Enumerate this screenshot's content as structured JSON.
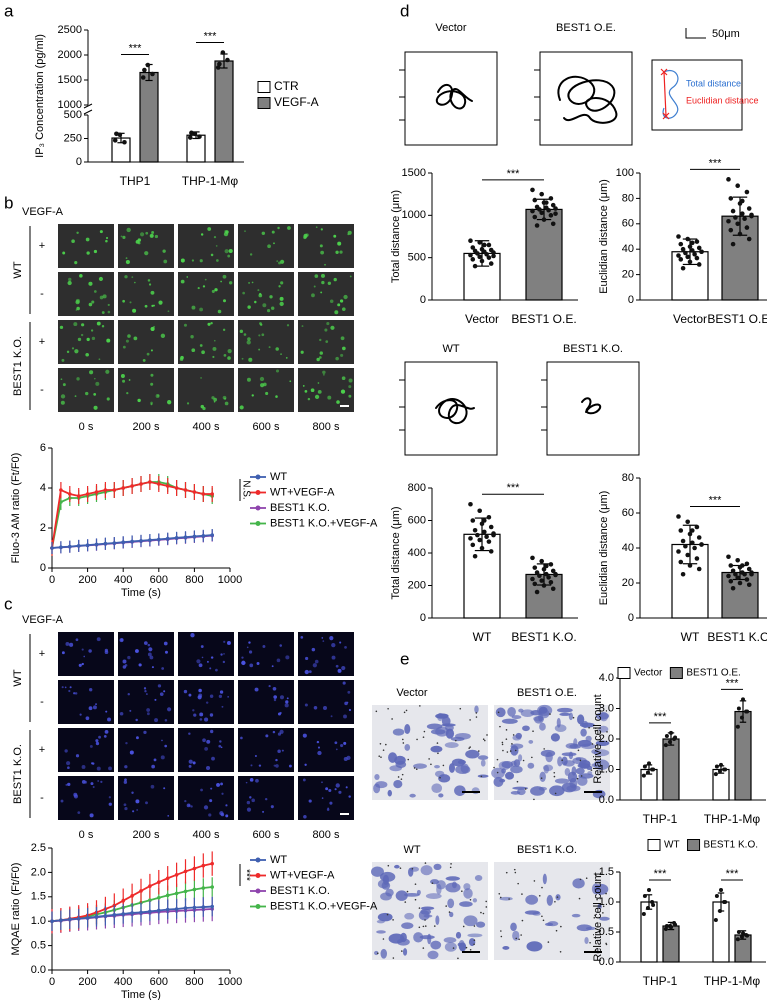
{
  "panel_labels": [
    "a",
    "b",
    "c",
    "d",
    "e"
  ],
  "calcium_imaging": {
    "stimulus": "VEGF-A",
    "groups": [
      "WT",
      "BEST1 K.O."
    ],
    "rows": [
      "+",
      "-",
      "+",
      "-"
    ],
    "times": [
      "0 s",
      "200 s",
      "400 s",
      "600 s",
      "800 s"
    ]
  },
  "mqae_imaging": {
    "stimulus": "VEGF-A",
    "groups": [
      "WT",
      "BEST1 K.O."
    ],
    "rows": [
      "+",
      "-",
      "+",
      "-"
    ],
    "times": [
      "0 s",
      "200 s",
      "400 s",
      "600 s",
      "800 s"
    ]
  },
  "trajectories": {
    "overexpression": [
      "Vector",
      "BEST1 O.E."
    ],
    "knockout": [
      "WT",
      "BEST1 K.O."
    ],
    "scale_bar": "50μm",
    "inset": [
      "Total distance",
      "Euclidian distance"
    ]
  },
  "transwell": {
    "overexpression": [
      "Vector",
      "BEST1 O.E."
    ],
    "knockout": [
      "WT",
      "BEST1 K.O."
    ]
  },
  "chart_data": [
    {
      "type": "bar",
      "ylabel": "IP₃ Concentration (pg/ml)",
      "categories": [
        "THP1",
        "THP-1-Mφ"
      ],
      "series": [
        {
          "name": "CTR",
          "color": "#ffffff",
          "values": [
            255,
            285
          ],
          "errors": [
            50,
            35
          ],
          "points": [
            [
              230,
              290,
              210,
              300
            ],
            [
              260,
              300,
              270,
              310
            ]
          ]
        },
        {
          "name": "VEGF-A",
          "color": "#808080",
          "values": [
            1650,
            1880
          ],
          "errors": [
            160,
            140
          ],
          "points": [
            [
              1550,
              1800,
              1620,
              1700
            ],
            [
              1750,
              2050,
              1900,
              1820
            ]
          ]
        }
      ],
      "ylim": [
        0,
        2500
      ],
      "yticks": [
        0,
        250,
        500,
        1000,
        1500,
        2000,
        2500
      ],
      "axis_break": [
        500,
        1000
      ],
      "annotations": [
        "***",
        "***"
      ],
      "legend": "right"
    },
    {
      "type": "line",
      "xlabel": "Time (s)",
      "ylabel": "Fluo-3 AM ratio (Ft/F0)",
      "x": [
        0,
        50,
        100,
        150,
        200,
        250,
        300,
        350,
        400,
        450,
        500,
        550,
        600,
        650,
        700,
        750,
        800,
        850,
        900
      ],
      "series": [
        {
          "name": "WT",
          "color": "#3f5fb0",
          "values": [
            1.0,
            1.04,
            1.07,
            1.11,
            1.14,
            1.18,
            1.22,
            1.25,
            1.29,
            1.33,
            1.36,
            1.4,
            1.43,
            1.47,
            1.51,
            1.54,
            1.58,
            1.61,
            1.65
          ],
          "errors": [
            0.3,
            0.3,
            0.3,
            0.3,
            0.3,
            0.3,
            0.3,
            0.3,
            0.3,
            0.3,
            0.3,
            0.3,
            0.3,
            0.3,
            0.3,
            0.3,
            0.3,
            0.3,
            0.3
          ]
        },
        {
          "name": "WT+VEGF-A",
          "color": "#ee2a2a",
          "values": [
            1.0,
            3.9,
            3.7,
            3.6,
            3.7,
            3.8,
            3.9,
            3.9,
            4.0,
            4.1,
            4.2,
            4.3,
            4.2,
            4.1,
            4.0,
            3.9,
            3.8,
            3.7,
            3.7
          ],
          "errors": [
            0.4,
            0.4,
            0.4,
            0.4,
            0.4,
            0.4,
            0.4,
            0.4,
            0.4,
            0.4,
            0.4,
            0.4,
            0.4,
            0.4,
            0.4,
            0.4,
            0.4,
            0.4,
            0.4
          ]
        },
        {
          "name": "BEST1 K.O.",
          "color": "#8e44ad",
          "values": [
            1.0,
            1.03,
            1.06,
            1.1,
            1.13,
            1.16,
            1.2,
            1.23,
            1.27,
            1.3,
            1.34,
            1.37,
            1.41,
            1.44,
            1.48,
            1.51,
            1.55,
            1.58,
            1.62
          ],
          "errors": [
            0.3,
            0.3,
            0.3,
            0.3,
            0.3,
            0.3,
            0.3,
            0.3,
            0.3,
            0.3,
            0.3,
            0.3,
            0.3,
            0.3,
            0.3,
            0.3,
            0.3,
            0.3,
            0.3
          ]
        },
        {
          "name": "BEST1 K.O.+VEGF-A",
          "color": "#44b54a",
          "values": [
            1.0,
            3.3,
            3.5,
            3.5,
            3.6,
            3.7,
            3.8,
            3.9,
            4.0,
            4.1,
            4.2,
            4.3,
            4.3,
            4.2,
            4.0,
            3.9,
            3.8,
            3.7,
            3.6
          ],
          "errors": [
            0.4,
            0.4,
            0.4,
            0.4,
            0.4,
            0.4,
            0.4,
            0.4,
            0.4,
            0.4,
            0.4,
            0.4,
            0.4,
            0.4,
            0.4,
            0.4,
            0.4,
            0.4,
            0.4
          ]
        }
      ],
      "xlim": [
        0,
        1000
      ],
      "xticks": [
        0,
        200,
        400,
        600,
        800,
        1000
      ],
      "ylim": [
        0,
        6
      ],
      "yticks": [
        0,
        2,
        4,
        6
      ],
      "annotation": "N.S."
    },
    {
      "type": "line",
      "xlabel": "Time (s)",
      "ylabel": "MQAE ratio (Ft/F0)",
      "x": [
        0,
        50,
        100,
        150,
        200,
        250,
        300,
        350,
        400,
        450,
        500,
        550,
        600,
        650,
        700,
        750,
        800,
        850,
        900
      ],
      "series": [
        {
          "name": "WT",
          "color": "#3f5fb0",
          "values": [
            1.0,
            1.02,
            1.04,
            1.05,
            1.07,
            1.09,
            1.11,
            1.13,
            1.15,
            1.17,
            1.18,
            1.2,
            1.22,
            1.24,
            1.25,
            1.27,
            1.28,
            1.29,
            1.3
          ],
          "errors": [
            0.2,
            0.2,
            0.2,
            0.2,
            0.2,
            0.2,
            0.2,
            0.2,
            0.2,
            0.2,
            0.2,
            0.2,
            0.2,
            0.2,
            0.2,
            0.2,
            0.2,
            0.2,
            0.2
          ]
        },
        {
          "name": "WT+VEGF-A",
          "color": "#ee2a2a",
          "values": [
            1.0,
            1.02,
            1.05,
            1.08,
            1.12,
            1.18,
            1.25,
            1.32,
            1.42,
            1.52,
            1.62,
            1.72,
            1.8,
            1.88,
            1.95,
            2.02,
            2.08,
            2.14,
            2.18
          ],
          "errors": [
            0.25,
            0.25,
            0.25,
            0.25,
            0.25,
            0.25,
            0.25,
            0.25,
            0.25,
            0.25,
            0.25,
            0.25,
            0.25,
            0.25,
            0.25,
            0.25,
            0.25,
            0.25,
            0.25
          ]
        },
        {
          "name": "BEST1 K.O.",
          "color": "#8e44ad",
          "values": [
            1.0,
            1.01,
            1.03,
            1.05,
            1.06,
            1.08,
            1.1,
            1.11,
            1.13,
            1.14,
            1.16,
            1.17,
            1.19,
            1.2,
            1.21,
            1.22,
            1.23,
            1.24,
            1.25
          ],
          "errors": [
            0.25,
            0.25,
            0.25,
            0.25,
            0.25,
            0.25,
            0.25,
            0.25,
            0.25,
            0.25,
            0.25,
            0.25,
            0.25,
            0.25,
            0.25,
            0.25,
            0.25,
            0.25,
            0.25
          ]
        },
        {
          "name": "BEST1 K.O.+VEGF-A",
          "color": "#44b54a",
          "values": [
            1.0,
            1.02,
            1.04,
            1.07,
            1.1,
            1.14,
            1.18,
            1.23,
            1.28,
            1.33,
            1.38,
            1.43,
            1.48,
            1.53,
            1.57,
            1.61,
            1.65,
            1.68,
            1.7
          ],
          "errors": [
            0.2,
            0.2,
            0.2,
            0.2,
            0.2,
            0.2,
            0.2,
            0.2,
            0.2,
            0.2,
            0.2,
            0.2,
            0.2,
            0.2,
            0.2,
            0.2,
            0.2,
            0.2,
            0.2
          ]
        }
      ],
      "xlim": [
        0,
        1000
      ],
      "xticks": [
        0,
        200,
        400,
        600,
        800,
        1000
      ],
      "ylim": [
        0,
        2.5
      ],
      "yticks": [
        {
          "value": 0,
          "label": "0.0"
        },
        0.5,
        {
          "value": 1,
          "label": "1.0"
        },
        1.5,
        {
          "value": 2,
          "label": "2.0"
        },
        2.5
      ],
      "annotation": "***"
    },
    {
      "type": "bar",
      "ylabel": "Total distance (μm)",
      "categories": [
        "Vector",
        "BEST1 O.E."
      ],
      "colors": [
        "#ffffff",
        "#808080"
      ],
      "values": [
        550,
        1070
      ],
      "errors": [
        150,
        120
      ],
      "points": [
        [
          700,
          680,
          650,
          620,
          600,
          590,
          580,
          570,
          560,
          550,
          540,
          530,
          510,
          500,
          480,
          460,
          430,
          400,
          650,
          520
        ],
        [
          1300,
          1250,
          1200,
          1180,
          1150,
          1120,
          1100,
          1090,
          1080,
          1070,
          1060,
          1050,
          1030,
          1000,
          980,
          950,
          900,
          880,
          1150,
          1020
        ]
      ],
      "ylim": [
        0,
        1500
      ],
      "yticks": [
        0,
        500,
        1000,
        1500
      ],
      "annotation": "***"
    },
    {
      "type": "bar",
      "ylabel": "Euclidian distance (μm)",
      "categories": [
        "Vector",
        "BEST1 O.E."
      ],
      "colors": [
        "#ffffff",
        "#808080"
      ],
      "values": [
        38,
        66
      ],
      "errors": [
        10,
        15
      ],
      "points": [
        [
          50,
          48,
          46,
          44,
          42,
          41,
          40,
          39,
          38,
          37,
          36,
          35,
          34,
          33,
          32,
          30,
          28,
          25,
          45,
          38
        ],
        [
          95,
          90,
          85,
          80,
          76,
          72,
          70,
          68,
          66,
          65,
          64,
          62,
          60,
          57,
          55,
          52,
          48,
          44,
          78,
          67
        ]
      ],
      "ylim": [
        0,
        100
      ],
      "yticks": [
        0,
        20,
        40,
        60,
        80,
        100
      ],
      "annotation": "***"
    },
    {
      "type": "bar",
      "ylabel": "Total distance (μm)",
      "categories": [
        "WT",
        "BEST1 K.O."
      ],
      "colors": [
        "#ffffff",
        "#808080"
      ],
      "values": [
        515,
        268
      ],
      "errors": [
        100,
        65
      ],
      "points": [
        [
          700,
          660,
          620,
          600,
          580,
          560,
          540,
          530,
          520,
          510,
          500,
          490,
          480,
          470,
          450,
          430,
          410,
          380,
          600,
          510
        ],
        [
          370,
          350,
          330,
          310,
          300,
          290,
          280,
          270,
          265,
          260,
          250,
          240,
          230,
          220,
          210,
          200,
          180,
          160,
          320,
          270
        ]
      ],
      "ylim": [
        0,
        800
      ],
      "yticks": [
        0,
        200,
        400,
        600,
        800
      ],
      "annotation": "***"
    },
    {
      "type": "bar",
      "ylabel": "Euclidian distance (μm)",
      "categories": [
        "WT",
        "BEST1 K.O."
      ],
      "colors": [
        "#ffffff",
        "#808080"
      ],
      "values": [
        42,
        26
      ],
      "errors": [
        11,
        4
      ],
      "points": [
        [
          58,
          55,
          52,
          50,
          48,
          46,
          44,
          43,
          42,
          41,
          40,
          38,
          36,
          34,
          32,
          30,
          28,
          25,
          50,
          42
        ],
        [
          35,
          33,
          31,
          30,
          29,
          28,
          27,
          26,
          26,
          25,
          25,
          24,
          23,
          22,
          21,
          20,
          19,
          17,
          30,
          25
        ]
      ],
      "ylim": [
        0,
        80
      ],
      "yticks": [
        0,
        20,
        40,
        60,
        80
      ],
      "annotation": "***"
    },
    {
      "type": "bar",
      "ylabel": "Relative cell count",
      "categories": [
        "THP-1",
        "THP-1-Mφ"
      ],
      "series": [
        {
          "name": "Vector",
          "color": "#ffffff",
          "values": [
            1.0,
            1.0
          ],
          "errors": [
            0.15,
            0.12
          ],
          "points": [
            [
              0.8,
              0.9,
              1.0,
              1.1,
              1.2,
              1.0
            ],
            [
              0.85,
              0.95,
              1.0,
              1.1,
              1.15,
              1.0
            ]
          ]
        },
        {
          "name": "BEST1 O.E.",
          "color": "#808080",
          "values": [
            2.0,
            2.9
          ],
          "errors": [
            0.2,
            0.35
          ],
          "points": [
            [
              1.8,
              1.9,
              2.0,
              2.1,
              2.2,
              2.05
            ],
            [
              2.4,
              2.7,
              2.9,
              3.0,
              3.3,
              2.9
            ]
          ]
        }
      ],
      "ylim": [
        0,
        4
      ],
      "yticks": [
        {
          "value": 0,
          "label": "0.0"
        },
        {
          "value": 1,
          "label": "1.0"
        },
        {
          "value": 2,
          "label": "2.0"
        },
        {
          "value": 3,
          "label": "3.0"
        },
        {
          "value": 4,
          "label": "4.0"
        }
      ],
      "annotations": [
        "***",
        "***"
      ],
      "legend": "top"
    },
    {
      "type": "bar",
      "ylabel": "Relative cell count",
      "categories": [
        "THP-1",
        "THP-1-Mφ"
      ],
      "series": [
        {
          "name": "WT",
          "color": "#ffffff",
          "values": [
            1.0,
            1.0
          ],
          "errors": [
            0.12,
            0.15
          ],
          "points": [
            [
              0.8,
              0.9,
              1.0,
              1.1,
              1.2,
              0.95
            ],
            [
              0.7,
              0.85,
              1.0,
              1.1,
              1.2,
              1.0
            ]
          ]
        },
        {
          "name": "BEST1 K.O.",
          "color": "#808080",
          "values": [
            0.6,
            0.45
          ],
          "errors": [
            0.06,
            0.07
          ],
          "points": [
            [
              0.55,
              0.6,
              0.65,
              0.6,
              0.58,
              0.62
            ],
            [
              0.38,
              0.42,
              0.45,
              0.5,
              0.48,
              0.44
            ]
          ]
        }
      ],
      "ylim": [
        0,
        1.5
      ],
      "yticks": [
        {
          "value": 0,
          "label": "0.0"
        },
        0.5,
        {
          "value": 1,
          "label": "1.0"
        },
        1.5
      ],
      "annotations": [
        "***",
        "***"
      ],
      "legend": "top"
    }
  ]
}
